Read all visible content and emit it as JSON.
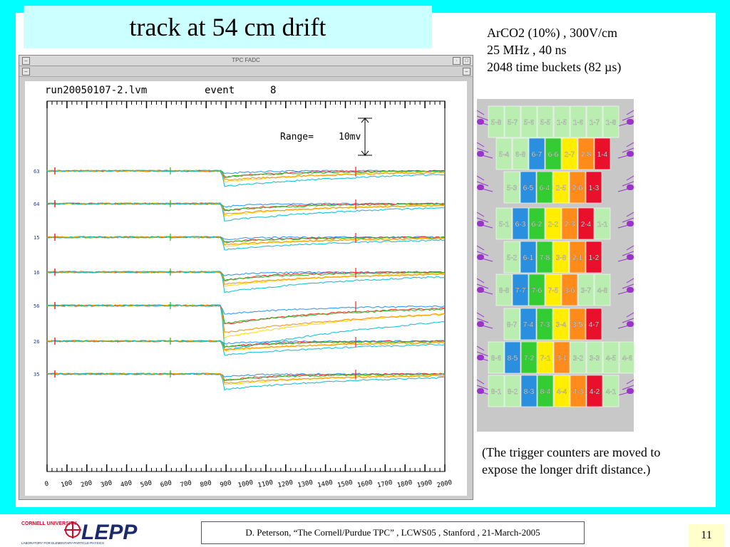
{
  "slide": {
    "title": "track at 54 cm drift",
    "parameters": [
      "ArCO2 (10%) , 300V/cm",
      "25 MHz , 40 ns",
      "2048 time buckets  (82 µs)"
    ],
    "note_lines": [
      "(The trigger counters are moved to",
      "expose the longer drift distance.)"
    ],
    "footer_credit": "D. Peterson,  “The Cornell/Purdue TPC” ,  LCWS05 , Stanford , 21-March-2005",
    "page_number": "11",
    "logo": {
      "org": "CORNELL UNIVERSITY",
      "name": "LEPP",
      "subtitle": "LABORATORY FOR ELEMENTARY-PARTICLE PHYSICS"
    }
  },
  "scope": {
    "window_title": "TPC FADC",
    "run_label": "run20050107-2.lvm",
    "event_label": "event",
    "event_number": "8",
    "range_label": "Range=",
    "range_value": "10mv",
    "x_ticks": [
      "0",
      "100",
      "200",
      "300",
      "400",
      "500",
      "600",
      "700",
      "800",
      "900",
      "1000",
      "1100",
      "1200",
      "1300",
      "1400",
      "1500",
      "1600",
      "1700",
      "1800",
      "1900",
      "2000"
    ],
    "channel_labels": [
      "63",
      "64",
      "15",
      "16",
      "56",
      "26",
      "35"
    ],
    "colors": [
      "#1e90ff",
      "#ff2020",
      "#22bb22",
      "#ffd700",
      "#ff8c00",
      "#00bcd4"
    ]
  },
  "pads": {
    "rows": [
      [
        "5-8",
        "5-7",
        "5-6",
        "5-5",
        "1-5",
        "1-6",
        "1-7",
        "1-8"
      ],
      [
        "5-4",
        "6-8",
        "6-7",
        "6-6",
        "2-7",
        "2-8",
        "1-4"
      ],
      [
        "5-3",
        "6-5",
        "6-4",
        "2-5",
        "2-6",
        "1-3"
      ],
      [
        "5-1",
        "6-3",
        "6-2",
        "2-2",
        "2-3",
        "2-4",
        "1-1"
      ],
      [
        "5-2",
        "6-1",
        "7-8",
        "3-8",
        "2-1",
        "1-2"
      ],
      [
        "8-8",
        "7-7",
        "7-6",
        "7-5",
        "3-6",
        "3-7",
        "4-8"
      ],
      [
        "8-7",
        "7-4",
        "7-3",
        "3-4",
        "3-5",
        "4-7"
      ],
      [
        "8-6",
        "8-5",
        "7-2",
        "7-1",
        "3-1",
        "3-2",
        "3-3",
        "4-5",
        "4-6"
      ],
      [
        "8-1",
        "8-2",
        "8-3",
        "8-4",
        "4-4",
        "4-3",
        "4-2",
        "4-1"
      ]
    ],
    "colors": {
      "red": "#e8102a",
      "orange": "#ff8c1a",
      "yellow": "#ffee00",
      "green": "#33cc33",
      "blue": "#2b8fe0",
      "lightgreen": "#b9eeb0",
      "trace": "#9933cc"
    }
  }
}
